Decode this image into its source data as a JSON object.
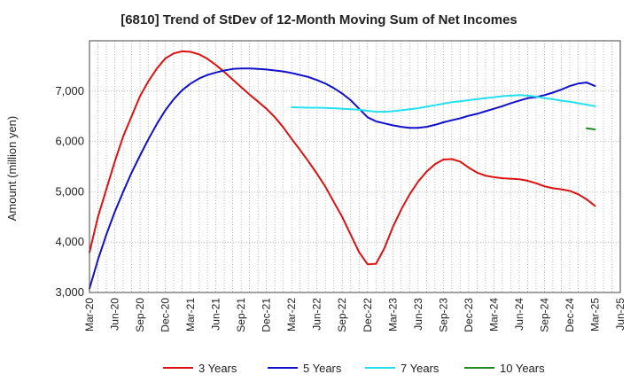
{
  "chart_data": {
    "type": "line",
    "title": "[6810]  Trend of StDev of 12-Month Moving Sum of Net Incomes",
    "xlabel": "",
    "ylabel": "Amount (million yen)",
    "ylim": [
      3000,
      8000
    ],
    "yticks": [
      3000,
      4000,
      5000,
      6000,
      7000
    ],
    "ytick_labels": [
      "3,000",
      "4,000",
      "5,000",
      "6,000",
      "7,000"
    ],
    "xticks": [
      "Mar-20",
      "Jun-20",
      "Sep-20",
      "Dec-20",
      "Mar-21",
      "Jun-21",
      "Sep-21",
      "Dec-21",
      "Mar-22",
      "Jun-22",
      "Sep-22",
      "Dec-22",
      "Mar-23",
      "Jun-23",
      "Sep-23",
      "Dec-23",
      "Mar-24",
      "Jun-24",
      "Sep-24",
      "Dec-24",
      "Mar-25",
      "Jun-25"
    ],
    "grid": true,
    "legend_position": "bottom",
    "series": [
      {
        "name": "3 Years",
        "color": "#dd1111",
        "points": [
          [
            "Mar-20",
            3800
          ],
          [
            "Apr-20",
            4500
          ],
          [
            "May-20",
            5050
          ],
          [
            "Jun-20",
            5600
          ],
          [
            "Jul-20",
            6100
          ],
          [
            "Aug-20",
            6500
          ],
          [
            "Sep-20",
            6900
          ],
          [
            "Oct-20",
            7200
          ],
          [
            "Nov-20",
            7450
          ],
          [
            "Dec-20",
            7650
          ],
          [
            "Jan-21",
            7750
          ],
          [
            "Feb-21",
            7790
          ],
          [
            "Mar-21",
            7780
          ],
          [
            "Apr-21",
            7730
          ],
          [
            "May-21",
            7640
          ],
          [
            "Jun-21",
            7520
          ],
          [
            "Jul-21",
            7380
          ],
          [
            "Aug-21",
            7230
          ],
          [
            "Sep-21",
            7080
          ],
          [
            "Oct-21",
            6930
          ],
          [
            "Nov-21",
            6790
          ],
          [
            "Dec-21",
            6650
          ],
          [
            "Jan-22",
            6480
          ],
          [
            "Feb-22",
            6280
          ],
          [
            "Mar-22",
            6050
          ],
          [
            "Apr-22",
            5830
          ],
          [
            "May-22",
            5600
          ],
          [
            "Jun-22",
            5360
          ],
          [
            "Jul-22",
            5100
          ],
          [
            "Aug-22",
            4800
          ],
          [
            "Sep-22",
            4500
          ],
          [
            "Oct-22",
            4150
          ],
          [
            "Nov-22",
            3800
          ],
          [
            "Dec-22",
            3560
          ],
          [
            "Jan-23",
            3570
          ],
          [
            "Feb-23",
            3880
          ],
          [
            "Mar-23",
            4300
          ],
          [
            "Apr-23",
            4650
          ],
          [
            "May-23",
            4950
          ],
          [
            "Jun-23",
            5200
          ],
          [
            "Jul-23",
            5400
          ],
          [
            "Aug-23",
            5550
          ],
          [
            "Sep-23",
            5640
          ],
          [
            "Oct-23",
            5650
          ],
          [
            "Nov-23",
            5600
          ],
          [
            "Dec-23",
            5480
          ],
          [
            "Jan-24",
            5380
          ],
          [
            "Feb-24",
            5320
          ],
          [
            "Mar-24",
            5290
          ],
          [
            "Apr-24",
            5270
          ],
          [
            "May-24",
            5260
          ],
          [
            "Jun-24",
            5250
          ],
          [
            "Jul-24",
            5220
          ],
          [
            "Aug-24",
            5170
          ],
          [
            "Sep-24",
            5110
          ],
          [
            "Oct-24",
            5070
          ],
          [
            "Nov-24",
            5050
          ],
          [
            "Dec-24",
            5020
          ],
          [
            "Jan-25",
            4950
          ],
          [
            "Feb-25",
            4850
          ],
          [
            "Mar-25",
            4720
          ]
        ]
      },
      {
        "name": "5 Years",
        "color": "#1111cc",
        "points": [
          [
            "Mar-20",
            3080
          ],
          [
            "Apr-20",
            3650
          ],
          [
            "May-20",
            4150
          ],
          [
            "Jun-20",
            4600
          ],
          [
            "Jul-20",
            5000
          ],
          [
            "Aug-20",
            5380
          ],
          [
            "Sep-20",
            5720
          ],
          [
            "Oct-20",
            6050
          ],
          [
            "Nov-20",
            6350
          ],
          [
            "Dec-20",
            6620
          ],
          [
            "Jan-21",
            6840
          ],
          [
            "Feb-21",
            7020
          ],
          [
            "Mar-21",
            7150
          ],
          [
            "Apr-21",
            7250
          ],
          [
            "May-21",
            7320
          ],
          [
            "Jun-21",
            7370
          ],
          [
            "Jul-21",
            7410
          ],
          [
            "Aug-21",
            7440
          ],
          [
            "Sep-21",
            7450
          ],
          [
            "Oct-21",
            7450
          ],
          [
            "Nov-21",
            7440
          ],
          [
            "Dec-21",
            7430
          ],
          [
            "Jan-22",
            7410
          ],
          [
            "Feb-22",
            7390
          ],
          [
            "Mar-22",
            7360
          ],
          [
            "Apr-22",
            7320
          ],
          [
            "May-22",
            7280
          ],
          [
            "Jun-22",
            7220
          ],
          [
            "Jul-22",
            7150
          ],
          [
            "Aug-22",
            7060
          ],
          [
            "Sep-22",
            6950
          ],
          [
            "Oct-22",
            6820
          ],
          [
            "Nov-22",
            6650
          ],
          [
            "Dec-22",
            6480
          ],
          [
            "Jan-23",
            6400
          ],
          [
            "Feb-23",
            6360
          ],
          [
            "Mar-23",
            6320
          ],
          [
            "Apr-23",
            6290
          ],
          [
            "May-23",
            6270
          ],
          [
            "Jun-23",
            6270
          ],
          [
            "Jul-23",
            6290
          ],
          [
            "Aug-23",
            6330
          ],
          [
            "Sep-23",
            6380
          ],
          [
            "Oct-23",
            6420
          ],
          [
            "Nov-23",
            6460
          ],
          [
            "Dec-23",
            6510
          ],
          [
            "Jan-24",
            6550
          ],
          [
            "Feb-24",
            6600
          ],
          [
            "Mar-24",
            6650
          ],
          [
            "Apr-24",
            6700
          ],
          [
            "May-24",
            6760
          ],
          [
            "Jun-24",
            6810
          ],
          [
            "Jul-24",
            6860
          ],
          [
            "Aug-24",
            6880
          ],
          [
            "Sep-24",
            6920
          ],
          [
            "Oct-24",
            6970
          ],
          [
            "Nov-24",
            7030
          ],
          [
            "Dec-24",
            7100
          ],
          [
            "Jan-25",
            7150
          ],
          [
            "Feb-25",
            7170
          ],
          [
            "Mar-25",
            7100
          ]
        ]
      },
      {
        "name": "7 Years",
        "color": "#22e0ee",
        "points": [
          [
            "Mar-22",
            6680
          ],
          [
            "Apr-22",
            6675
          ],
          [
            "May-22",
            6670
          ],
          [
            "Jun-22",
            6670
          ],
          [
            "Jul-22",
            6665
          ],
          [
            "Aug-22",
            6660
          ],
          [
            "Sep-22",
            6650
          ],
          [
            "Oct-22",
            6640
          ],
          [
            "Nov-22",
            6630
          ],
          [
            "Dec-22",
            6610
          ],
          [
            "Jan-23",
            6590
          ],
          [
            "Feb-23",
            6590
          ],
          [
            "Mar-23",
            6600
          ],
          [
            "Apr-23",
            6620
          ],
          [
            "May-23",
            6640
          ],
          [
            "Jun-23",
            6660
          ],
          [
            "Jul-23",
            6690
          ],
          [
            "Aug-23",
            6720
          ],
          [
            "Sep-23",
            6750
          ],
          [
            "Oct-23",
            6780
          ],
          [
            "Nov-23",
            6800
          ],
          [
            "Dec-23",
            6820
          ],
          [
            "Jan-24",
            6840
          ],
          [
            "Feb-24",
            6860
          ],
          [
            "Mar-24",
            6880
          ],
          [
            "Apr-24",
            6900
          ],
          [
            "May-24",
            6910
          ],
          [
            "Jun-24",
            6920
          ],
          [
            "Jul-24",
            6910
          ],
          [
            "Aug-24",
            6890
          ],
          [
            "Sep-24",
            6860
          ],
          [
            "Oct-24",
            6840
          ],
          [
            "Nov-24",
            6810
          ],
          [
            "Dec-24",
            6790
          ],
          [
            "Jan-25",
            6760
          ],
          [
            "Feb-25",
            6730
          ],
          [
            "Mar-25",
            6700
          ]
        ]
      },
      {
        "name": "10 Years",
        "color": "#228822",
        "points": [
          [
            "Feb-25",
            6260
          ],
          [
            "Mar-25",
            6240
          ]
        ]
      }
    ]
  }
}
